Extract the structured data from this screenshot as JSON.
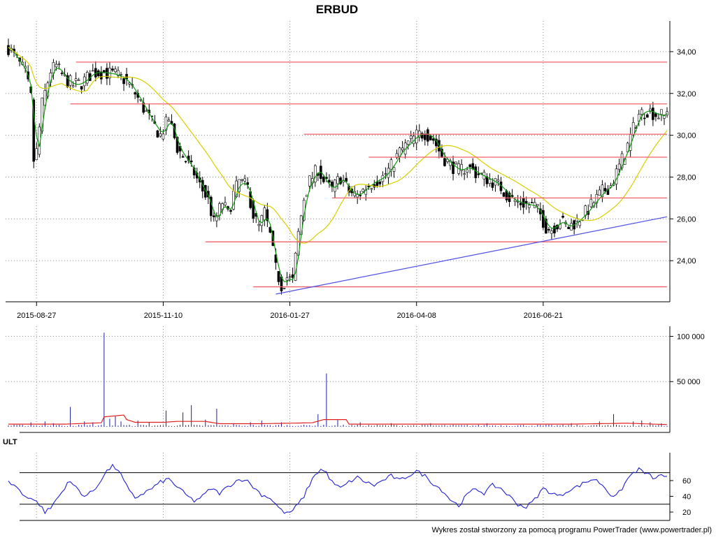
{
  "chart_data": [
    {
      "panel": "price",
      "type": "candlestick",
      "title": "ERBUD",
      "ylim": [
        22.2,
        35.0
      ],
      "y_ticks": [
        "34,00",
        "32,00",
        "30,00",
        "28,00",
        "26,00",
        "24,00"
      ],
      "y_tick_values": [
        34,
        32,
        30,
        28,
        26,
        24
      ],
      "x_ticks": [
        "2015-08-27",
        "2015-11-10",
        "2016-01-27",
        "2016-04-08",
        "2016-06-21"
      ],
      "x_tick_index": [
        10,
        55,
        100,
        145,
        190
      ],
      "num_sessions": 235,
      "grid": true,
      "close_keypoints": [
        [
          0,
          34.2
        ],
        [
          3,
          33.6
        ],
        [
          6,
          33.0
        ],
        [
          8,
          31.8
        ],
        [
          9,
          28.8
        ],
        [
          10,
          29.2
        ],
        [
          12,
          31.5
        ],
        [
          15,
          33.1
        ],
        [
          17,
          33.3
        ],
        [
          20,
          32.7
        ],
        [
          23,
          32.4
        ],
        [
          26,
          32.5
        ],
        [
          30,
          33.0
        ],
        [
          34,
          33.0
        ],
        [
          38,
          32.9
        ],
        [
          42,
          32.6
        ],
        [
          45,
          32.0
        ],
        [
          48,
          31.3
        ],
        [
          51,
          30.6
        ],
        [
          54,
          30.0
        ],
        [
          57,
          30.8
        ],
        [
          60,
          29.4
        ],
        [
          63,
          28.8
        ],
        [
          66,
          28.2
        ],
        [
          68,
          27.6
        ],
        [
          71,
          26.9
        ],
        [
          73,
          25.8
        ],
        [
          76,
          26.8
        ],
        [
          78,
          26.2
        ],
        [
          80,
          27.2
        ],
        [
          82,
          27.8
        ],
        [
          85,
          27.5
        ],
        [
          87,
          26.2
        ],
        [
          89,
          25.6
        ],
        [
          91,
          26.3
        ],
        [
          93,
          25.2
        ],
        [
          95,
          23.6
        ],
        [
          97,
          22.8
        ],
        [
          99,
          23.2
        ],
        [
          101,
          23.0
        ],
        [
          103,
          25.3
        ],
        [
          105,
          27.0
        ],
        [
          107,
          27.8
        ],
        [
          110,
          28.4
        ],
        [
          112,
          27.8
        ],
        [
          115,
          27.4
        ],
        [
          118,
          28.0
        ],
        [
          121,
          27.3
        ],
        [
          124,
          27.1
        ],
        [
          127,
          27.5
        ],
        [
          130,
          27.8
        ],
        [
          133,
          28.0
        ],
        [
          136,
          28.5
        ],
        [
          139,
          29.2
        ],
        [
          142,
          29.6
        ],
        [
          145,
          30.0
        ],
        [
          148,
          30.1
        ],
        [
          151,
          29.8
        ],
        [
          154,
          29.0
        ],
        [
          157,
          28.6
        ],
        [
          160,
          28.3
        ],
        [
          163,
          28.5
        ],
        [
          166,
          28.2
        ],
        [
          169,
          28.0
        ],
        [
          172,
          27.8
        ],
        [
          175,
          27.5
        ],
        [
          178,
          27.0
        ],
        [
          181,
          26.8
        ],
        [
          184,
          26.7
        ],
        [
          187,
          26.6
        ],
        [
          189,
          26.2
        ],
        [
          191,
          25.6
        ],
        [
          193,
          25.5
        ],
        [
          196,
          25.9
        ],
        [
          199,
          25.6
        ],
        [
          202,
          25.9
        ],
        [
          205,
          26.3
        ],
        [
          208,
          26.8
        ],
        [
          211,
          27.3
        ],
        [
          214,
          27.6
        ],
        [
          217,
          28.5
        ],
        [
          220,
          29.5
        ],
        [
          222,
          30.3
        ],
        [
          224,
          31.0
        ],
        [
          227,
          31.2
        ],
        [
          230,
          31.0
        ],
        [
          233,
          30.9
        ],
        [
          234,
          31.3
        ]
      ],
      "moving_averages": [
        {
          "color": "#109a10",
          "period": 3
        },
        {
          "color": "#d8d000",
          "period": 20
        }
      ],
      "support_resistance_lines": [
        {
          "value": 33.5,
          "x_range": [
            24,
            234
          ],
          "color": "#f06068"
        },
        {
          "value": 31.5,
          "x_range": [
            22,
            234
          ],
          "color": "#f06068"
        },
        {
          "value": 30.05,
          "x_range": [
            105,
            234
          ],
          "color": "#f06068"
        },
        {
          "value": 28.95,
          "x_range": [
            128,
            234
          ],
          "color": "#f06068"
        },
        {
          "value": 27.0,
          "x_range": [
            115,
            234
          ],
          "color": "#f06068"
        },
        {
          "value": 24.9,
          "x_range": [
            70,
            234
          ],
          "color": "#f06068"
        },
        {
          "value": 22.75,
          "x_range": [
            87,
            234
          ],
          "color": "#f06068"
        }
      ],
      "trend_line": {
        "from": [
          95,
          22.4
        ],
        "to": [
          234,
          26.1
        ],
        "color": "#5050e8"
      }
    },
    {
      "panel": "volume",
      "type": "bar",
      "ylim": [
        0,
        105000
      ],
      "y_ticks": [
        "100 000",
        "50 000"
      ],
      "y_tick_values": [
        100000,
        50000
      ],
      "bar_color": "#2020a0",
      "average_color": "#e02020",
      "baseline_volume": 1500,
      "spikes": [
        [
          8,
          5000
        ],
        [
          13,
          6000
        ],
        [
          16,
          4000
        ],
        [
          22,
          22000
        ],
        [
          27,
          6000
        ],
        [
          30,
          5000
        ],
        [
          34,
          104000
        ],
        [
          36,
          9000
        ],
        [
          38,
          12000
        ],
        [
          40,
          6000
        ],
        [
          46,
          7000
        ],
        [
          50,
          5000
        ],
        [
          56,
          18000
        ],
        [
          62,
          16000
        ],
        [
          65,
          24000
        ],
        [
          70,
          8000
        ],
        [
          74,
          20000
        ],
        [
          80,
          4000
        ],
        [
          86,
          5000
        ],
        [
          90,
          7000
        ],
        [
          97,
          5000
        ],
        [
          110,
          14000
        ],
        [
          113,
          59000
        ],
        [
          117,
          8000
        ],
        [
          125,
          5000
        ],
        [
          136,
          4000
        ],
        [
          150,
          4000
        ],
        [
          170,
          4000
        ],
        [
          200,
          4000
        ],
        [
          210,
          6000
        ],
        [
          215,
          14000
        ],
        [
          222,
          6000
        ],
        [
          225,
          7000
        ],
        [
          228,
          5000
        ],
        [
          232,
          4000
        ]
      ],
      "avg_keypoints": [
        [
          0,
          3000
        ],
        [
          20,
          3000
        ],
        [
          33,
          4500
        ],
        [
          34,
          11000
        ],
        [
          41,
          13000
        ],
        [
          42,
          8000
        ],
        [
          45,
          5000
        ],
        [
          55,
          5000
        ],
        [
          60,
          6000
        ],
        [
          70,
          6000
        ],
        [
          75,
          3500
        ],
        [
          90,
          3500
        ],
        [
          100,
          4000
        ],
        [
          108,
          4500
        ],
        [
          112,
          8000
        ],
        [
          120,
          8000
        ],
        [
          121,
          3000
        ],
        [
          200,
          3000
        ],
        [
          220,
          4000
        ],
        [
          234,
          2500
        ]
      ]
    },
    {
      "panel": "indicator",
      "type": "line",
      "label": "ULT",
      "ylim": [
        12,
        83
      ],
      "y_ticks": [
        "60",
        "40",
        "20"
      ],
      "y_tick_values": [
        60,
        40,
        20
      ],
      "levels": [
        70,
        30
      ],
      "line_color": "#2020d0",
      "keypoints": [
        [
          0,
          58
        ],
        [
          3,
          52
        ],
        [
          5,
          42
        ],
        [
          8,
          38
        ],
        [
          11,
          30
        ],
        [
          13,
          20
        ],
        [
          15,
          25
        ],
        [
          17,
          36
        ],
        [
          19,
          45
        ],
        [
          21,
          58
        ],
        [
          23,
          55
        ],
        [
          25,
          48
        ],
        [
          27,
          40
        ],
        [
          29,
          44
        ],
        [
          31,
          50
        ],
        [
          33,
          62
        ],
        [
          35,
          72
        ],
        [
          37,
          78
        ],
        [
          39,
          74
        ],
        [
          41,
          60
        ],
        [
          43,
          46
        ],
        [
          45,
          38
        ],
        [
          48,
          44
        ],
        [
          51,
          50
        ],
        [
          54,
          58
        ],
        [
          57,
          62
        ],
        [
          60,
          52
        ],
        [
          63,
          42
        ],
        [
          66,
          34
        ],
        [
          69,
          40
        ],
        [
          72,
          50
        ],
        [
          75,
          44
        ],
        [
          78,
          52
        ],
        [
          81,
          60
        ],
        [
          84,
          62
        ],
        [
          87,
          52
        ],
        [
          90,
          42
        ],
        [
          93,
          38
        ],
        [
          95,
          30
        ],
        [
          97,
          22
        ],
        [
          99,
          18
        ],
        [
          101,
          22
        ],
        [
          103,
          30
        ],
        [
          105,
          40
        ],
        [
          107,
          55
        ],
        [
          109,
          68
        ],
        [
          111,
          74
        ],
        [
          113,
          70
        ],
        [
          115,
          58
        ],
        [
          118,
          50
        ],
        [
          121,
          58
        ],
        [
          124,
          64
        ],
        [
          127,
          58
        ],
        [
          130,
          54
        ],
        [
          133,
          60
        ],
        [
          136,
          66
        ],
        [
          139,
          60
        ],
        [
          142,
          66
        ],
        [
          145,
          72
        ],
        [
          148,
          66
        ],
        [
          151,
          56
        ],
        [
          154,
          48
        ],
        [
          157,
          36
        ],
        [
          160,
          28
        ],
        [
          163,
          42
        ],
        [
          166,
          50
        ],
        [
          169,
          44
        ],
        [
          172,
          54
        ],
        [
          175,
          50
        ],
        [
          178,
          40
        ],
        [
          181,
          30
        ],
        [
          184,
          26
        ],
        [
          187,
          36
        ],
        [
          190,
          50
        ],
        [
          193,
          44
        ],
        [
          196,
          40
        ],
        [
          199,
          48
        ],
        [
          202,
          52
        ],
        [
          205,
          58
        ],
        [
          208,
          62
        ],
        [
          211,
          55
        ],
        [
          214,
          42
        ],
        [
          216,
          40
        ],
        [
          218,
          50
        ],
        [
          220,
          62
        ],
        [
          222,
          70
        ],
        [
          224,
          74
        ],
        [
          226,
          70
        ],
        [
          228,
          66
        ],
        [
          230,
          62
        ],
        [
          232,
          68
        ],
        [
          234,
          64
        ]
      ]
    }
  ],
  "footer": "Wykres został stworzony za pomocą programu PowerTrader (www.powertrader.pl)"
}
